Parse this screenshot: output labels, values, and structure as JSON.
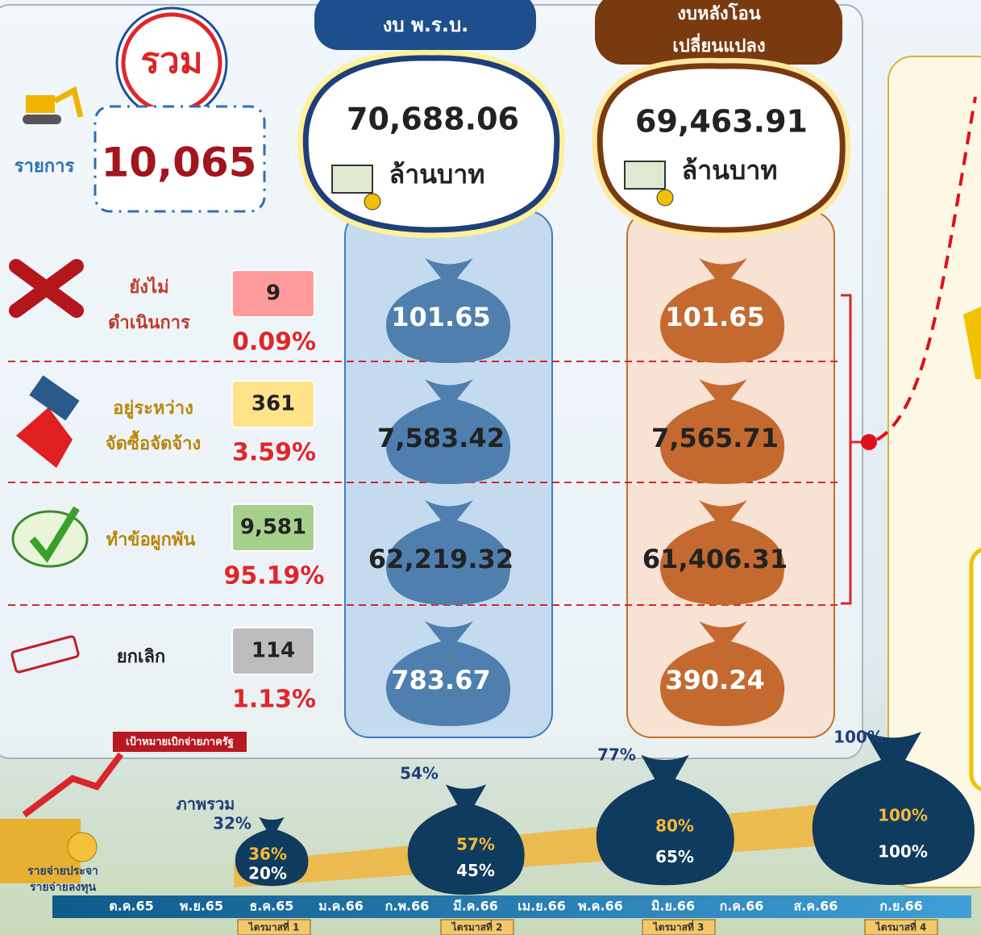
{
  "total": {
    "label": "รวม",
    "items_label": "รายการ",
    "count": "10,065"
  },
  "budget": {
    "header": "งบ พ.ร.บ.",
    "amount": "70,688.06",
    "unit": "ล้านบาท"
  },
  "transferred": {
    "header": [
      "งบหลังโอน",
      "เปลี่ยนแปลง"
    ],
    "amount": "69,463.91",
    "unit": "ล้านบาท"
  },
  "statuses": [
    {
      "label": [
        "ยังไม่",
        "ดำเนินการ"
      ],
      "count": "9",
      "percent": "0.09%",
      "budget": "101.65",
      "transferred": "101.65"
    },
    {
      "label": [
        "อยู่ระหว่าง",
        "จัดซื้อจัดจ้าง"
      ],
      "count": "361",
      "percent": "3.59%",
      "budget": "7,583.42",
      "transferred": "7,565.71"
    },
    {
      "label": [
        "ทำข้อผูกพัน"
      ],
      "count": "9,581",
      "percent": "95.19%",
      "budget": "62,219.32",
      "transferred": "61,406.31"
    },
    {
      "label": [
        "ยกเลิก"
      ],
      "count": "114",
      "percent": "1.13%",
      "budget": "783.67",
      "transferred": "390.24"
    }
  ],
  "timeline": {
    "target_label": "เป้าหมายเบิกจ่ายภาครัฐ",
    "overall_label": "ภาพรวม",
    "legend": [
      "รายจ่ายประจา",
      "รายจ่ายลงทุน"
    ],
    "months": [
      "ต.ค.65",
      "พ.ย.65",
      "ธ.ค.65",
      "ม.ค.66",
      "ก.พ.66",
      "มี.ค.66",
      "เม.ย.66",
      "พ.ค.66",
      "มิ.ย.66",
      "ก.ค.66",
      "ส.ค.66",
      "ก.ย.66"
    ],
    "quarters": [
      {
        "label": "ไตรมาสที่ 1",
        "overall": "32%",
        "recurrent": "36%",
        "investment": "20%"
      },
      {
        "label": "ไตรมาสที่ 2",
        "overall": "54%",
        "recurrent": "57%",
        "investment": "45%"
      },
      {
        "label": "ไตรมาสที่ 3",
        "overall": "77%",
        "recurrent": "80%",
        "investment": "65%"
      },
      {
        "label": "ไตรมาสที่ 4",
        "overall": "100%",
        "recurrent": "100%",
        "investment": "100%"
      }
    ]
  }
}
